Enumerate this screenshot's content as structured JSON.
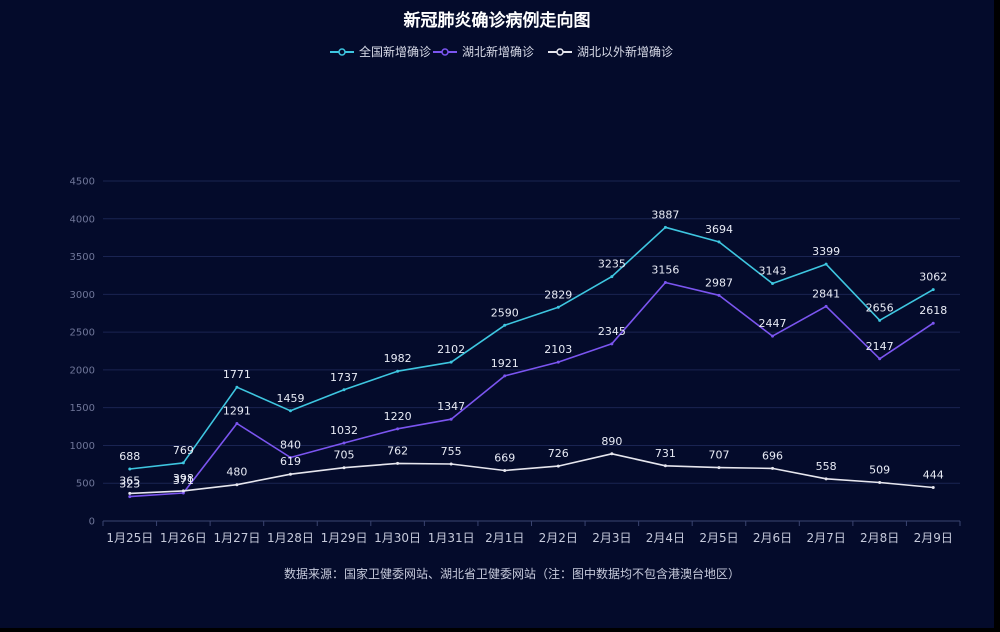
{
  "chart_data": {
    "type": "line",
    "title": "新冠肺炎确诊病例走向图",
    "source_note": "数据来源：国家卫健委网站、湖北省卫健委网站（注：图中数据均不包含港澳台地区）",
    "categories": [
      "1月25日",
      "1月26日",
      "1月27日",
      "1月28日",
      "1月29日",
      "1月30日",
      "1月31日",
      "2月1日",
      "2月2日",
      "2月3日",
      "2月4日",
      "2月5日",
      "2月6日",
      "2月7日",
      "2月8日",
      "2月9日"
    ],
    "ylim": [
      0,
      4500
    ],
    "yticks": [
      0,
      500,
      1000,
      1500,
      2000,
      2500,
      3000,
      3500,
      4000,
      4500
    ],
    "grid": true,
    "legend_position": "top-center",
    "series": [
      {
        "name": "全国新增确诊",
        "color": "#3ec6e0",
        "values": [
          688,
          769,
          1771,
          1459,
          1737,
          1982,
          2102,
          2590,
          2829,
          3235,
          3887,
          3694,
          3143,
          3399,
          2656,
          3062
        ]
      },
      {
        "name": "湖北新增确诊",
        "color": "#7b55f0",
        "values": [
          323,
          371,
          1291,
          840,
          1032,
          1220,
          1347,
          1921,
          2103,
          2345,
          3156,
          2987,
          2447,
          2841,
          2147,
          2618
        ]
      },
      {
        "name": "湖北以外新增确诊",
        "color": "#e6e6ee",
        "values": [
          365,
          398,
          480,
          619,
          705,
          762,
          755,
          669,
          726,
          890,
          731,
          707,
          696,
          558,
          509,
          444
        ]
      }
    ]
  }
}
